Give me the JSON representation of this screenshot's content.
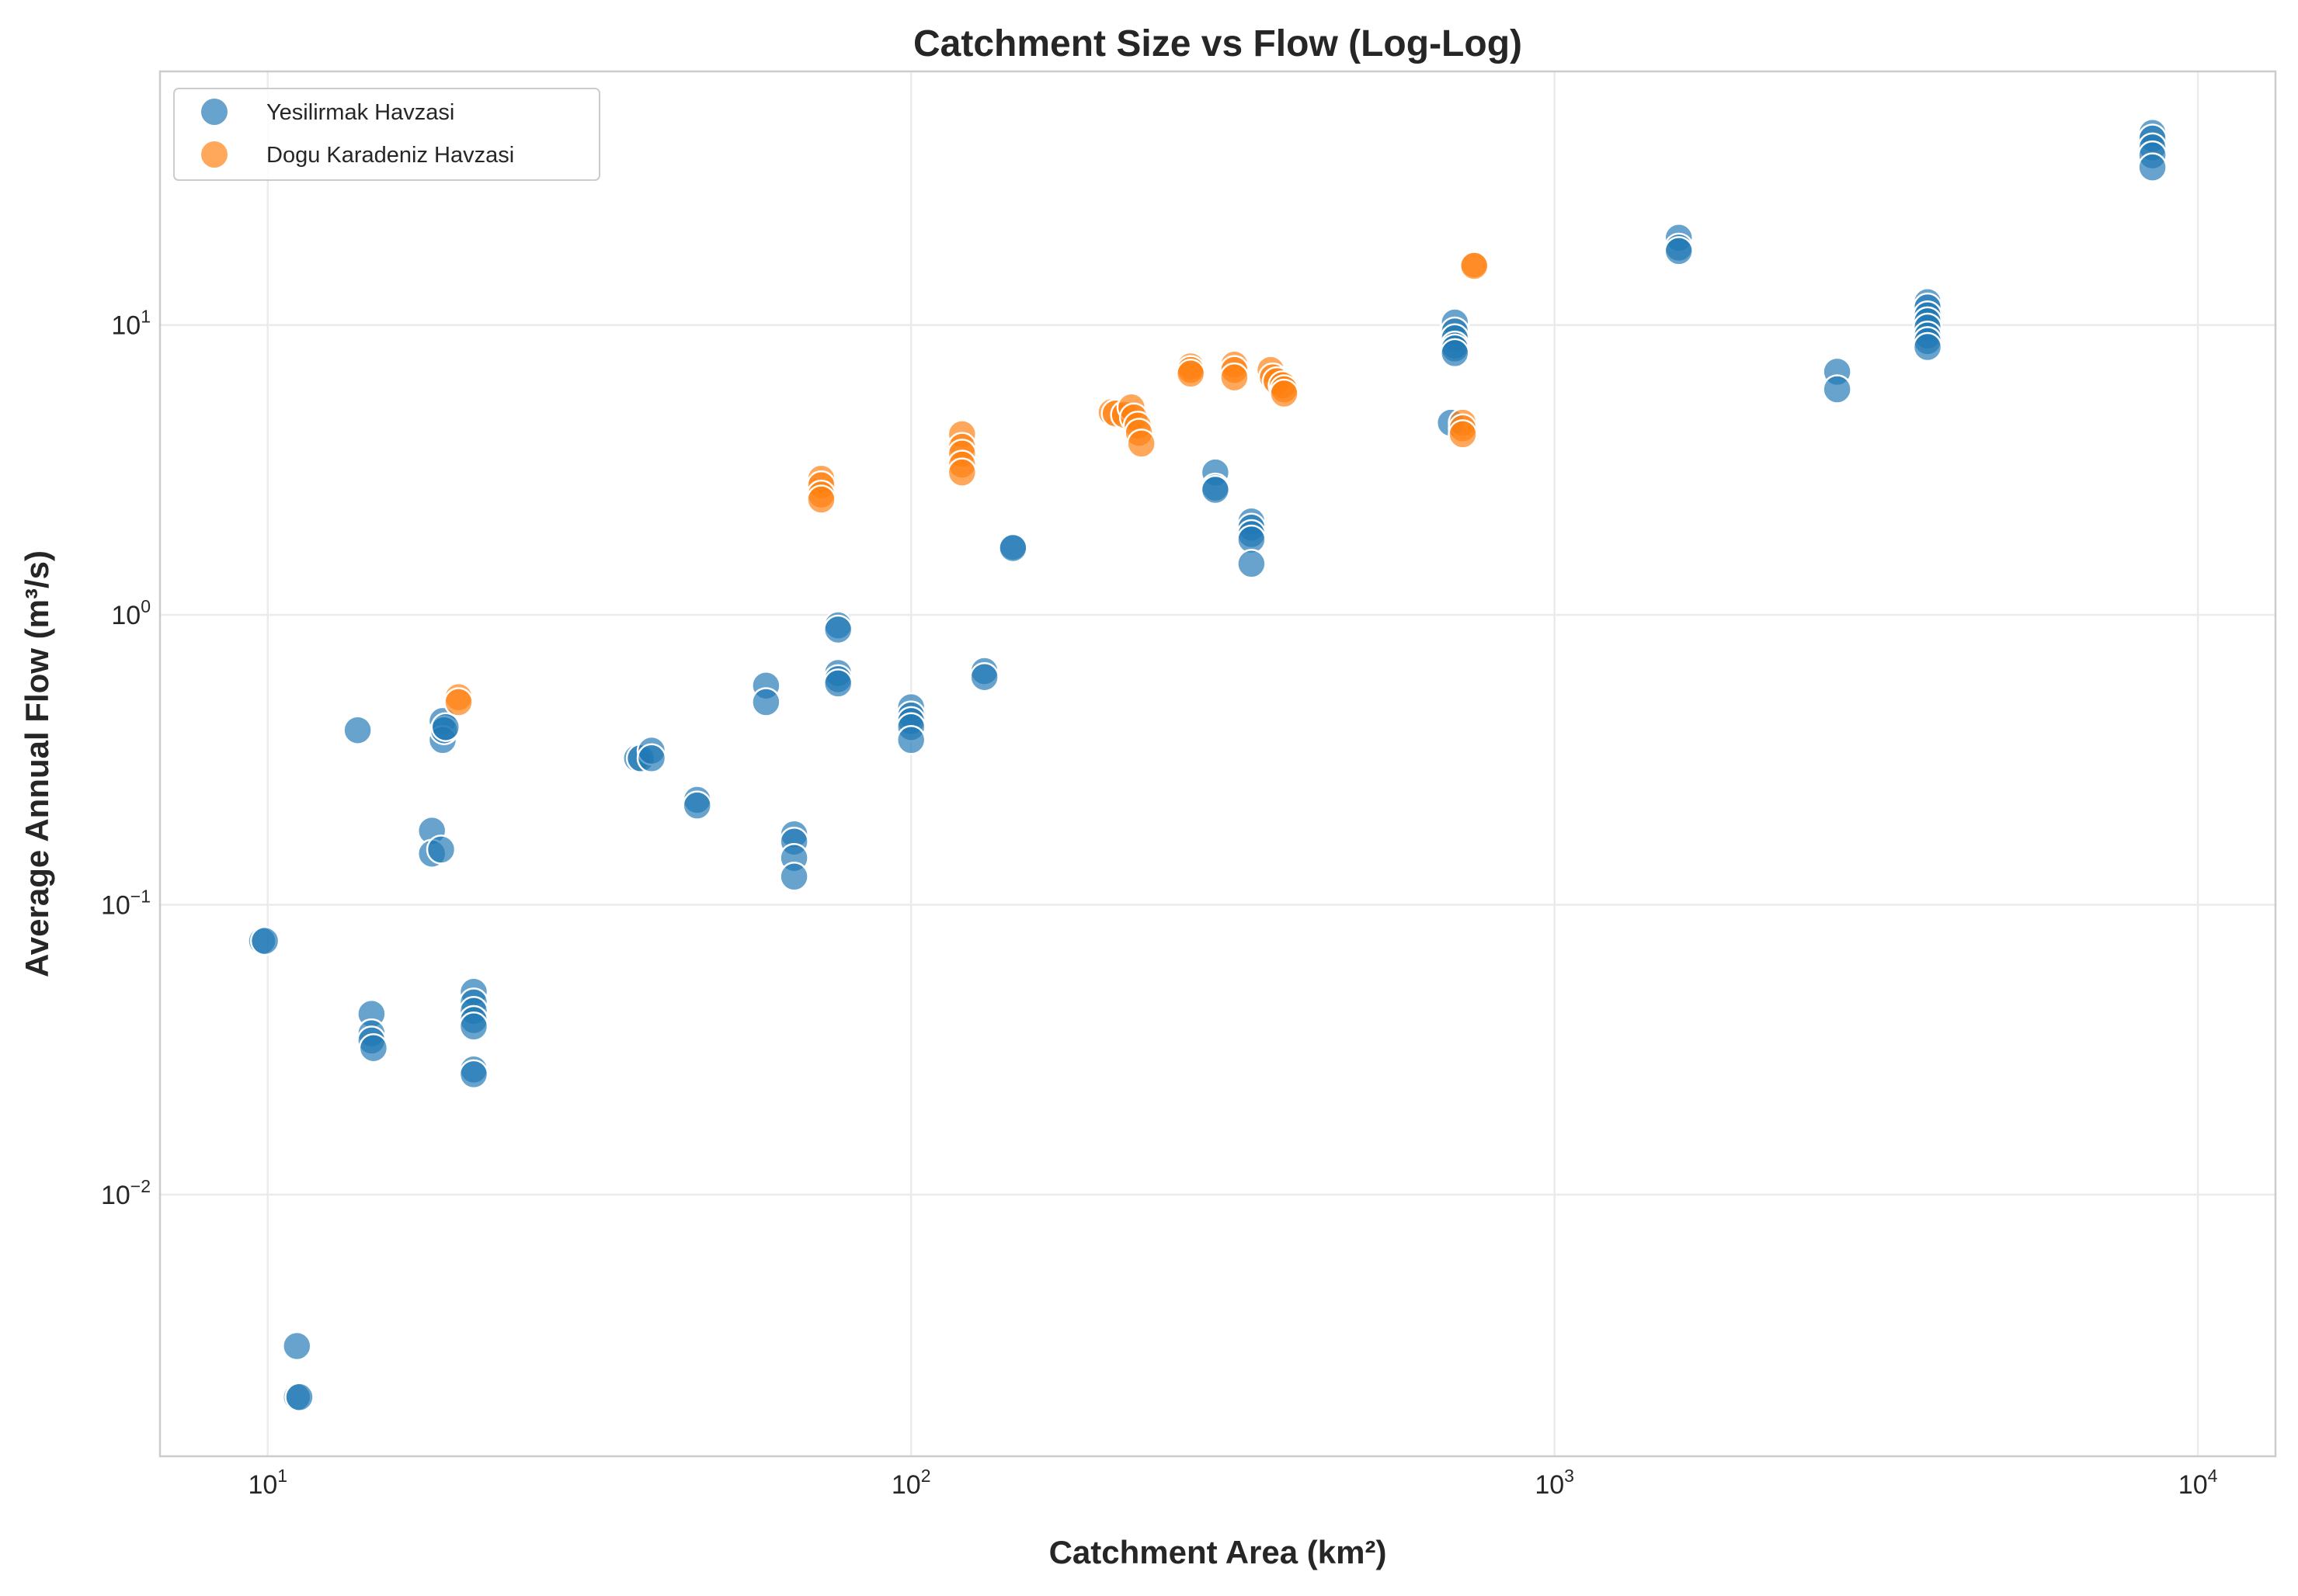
{
  "chart_data": {
    "type": "scatter",
    "title": "Catchment Size vs Flow (Log-Log)",
    "xlabel": "Catchment Area (km²)",
    "ylabel": "Average Annual Flow (m³/s)",
    "xscale": "log",
    "yscale": "log",
    "xlim": [
      6.8,
      13200
    ],
    "ylim": [
      0.00125,
      75
    ],
    "xticks": [
      {
        "base": "10",
        "exp": "1",
        "value": 10
      },
      {
        "base": "10",
        "exp": "2",
        "value": 100
      },
      {
        "base": "10",
        "exp": "3",
        "value": 1000
      },
      {
        "base": "10",
        "exp": "4",
        "value": 10000
      }
    ],
    "yticks": [
      {
        "base": "10",
        "exp": "−2",
        "value": 0.01
      },
      {
        "base": "10",
        "exp": "−1",
        "value": 0.1
      },
      {
        "base": "10",
        "exp": "0",
        "value": 1
      },
      {
        "base": "10",
        "exp": "1",
        "value": 10
      }
    ],
    "grid": true,
    "legend_position": "top-left",
    "series": [
      {
        "name": "Yesilirmak Havzasi",
        "color": "#1f77b4",
        "points": [
          [
            9.8,
            0.075
          ],
          [
            9.9,
            0.075
          ],
          [
            11.1,
            0.003
          ],
          [
            11.1,
            0.002
          ],
          [
            11.2,
            0.002
          ],
          [
            13.8,
            0.4
          ],
          [
            14.5,
            0.042
          ],
          [
            14.5,
            0.036
          ],
          [
            14.5,
            0.034
          ],
          [
            14.6,
            0.032
          ],
          [
            18.0,
            0.18
          ],
          [
            18.0,
            0.15
          ],
          [
            18.6,
            0.155
          ],
          [
            18.7,
            0.43
          ],
          [
            18.7,
            0.37
          ],
          [
            18.8,
            0.4
          ],
          [
            18.9,
            0.41
          ],
          [
            20.9,
            0.05
          ],
          [
            20.9,
            0.046
          ],
          [
            20.9,
            0.043
          ],
          [
            20.9,
            0.04
          ],
          [
            20.9,
            0.038
          ],
          [
            20.9,
            0.027
          ],
          [
            20.9,
            0.026
          ],
          [
            37.5,
            0.32
          ],
          [
            38.0,
            0.32
          ],
          [
            39.5,
            0.34
          ],
          [
            39.5,
            0.32
          ],
          [
            46.5,
            0.23
          ],
          [
            46.5,
            0.22
          ],
          [
            59.5,
            0.57
          ],
          [
            59.5,
            0.5
          ],
          [
            65.8,
            0.175
          ],
          [
            65.8,
            0.165
          ],
          [
            65.8,
            0.145
          ],
          [
            65.8,
            0.125
          ],
          [
            77.0,
            0.92
          ],
          [
            77.0,
            0.89
          ],
          [
            77.0,
            0.63
          ],
          [
            77.0,
            0.6
          ],
          [
            77.0,
            0.58
          ],
          [
            100.0,
            0.48
          ],
          [
            100.0,
            0.45
          ],
          [
            100.0,
            0.43
          ],
          [
            100.0,
            0.41
          ],
          [
            100.0,
            0.37
          ],
          [
            130.0,
            0.64
          ],
          [
            130.0,
            0.61
          ],
          [
            144.0,
            1.72
          ],
          [
            144.0,
            1.7
          ],
          [
            297.0,
            3.1
          ],
          [
            297.0,
            2.75
          ],
          [
            297.0,
            2.7
          ],
          [
            338.0,
            2.1
          ],
          [
            338.0,
            2.0
          ],
          [
            338.0,
            1.9
          ],
          [
            338.0,
            1.82
          ],
          [
            338.0,
            1.5
          ],
          [
            700.0,
            10.2
          ],
          [
            700.0,
            9.5
          ],
          [
            700.0,
            9.0
          ],
          [
            700.0,
            8.5
          ],
          [
            700.0,
            8.3
          ],
          [
            700.0,
            8.0
          ],
          [
            690.0,
            4.6
          ],
          [
            1560.0,
            20.0
          ],
          [
            1560.0,
            18.5
          ],
          [
            1560.0,
            18.0
          ],
          [
            2750.0,
            6.9
          ],
          [
            2750.0,
            6.0
          ],
          [
            3800.0,
            12.0
          ],
          [
            3800.0,
            11.5
          ],
          [
            3800.0,
            10.8
          ],
          [
            3800.0,
            10.3
          ],
          [
            3800.0,
            9.8
          ],
          [
            3800.0,
            9.2
          ],
          [
            3800.0,
            8.8
          ],
          [
            3800.0,
            8.4
          ],
          [
            8500.0,
            46.0
          ],
          [
            8500.0,
            44.0
          ],
          [
            8500.0,
            41.0
          ],
          [
            8500.0,
            38.5
          ],
          [
            8500.0,
            35.0
          ]
        ]
      },
      {
        "name": "Dogu Karadeniz Havzasi",
        "color": "#ff7f0e",
        "points": [
          [
            19.8,
            0.52
          ],
          [
            19.8,
            0.5
          ],
          [
            72.5,
            2.95
          ],
          [
            72.5,
            2.8
          ],
          [
            72.5,
            2.6
          ],
          [
            72.5,
            2.5
          ],
          [
            120.0,
            4.2
          ],
          [
            120.0,
            3.8
          ],
          [
            120.0,
            3.6
          ],
          [
            120.0,
            3.3
          ],
          [
            120.0,
            3.1
          ],
          [
            205.0,
            5.0
          ],
          [
            208.0,
            4.95
          ],
          [
            215.0,
            4.9
          ],
          [
            220.0,
            5.2
          ],
          [
            222.0,
            4.8
          ],
          [
            225.0,
            4.5
          ],
          [
            226.0,
            4.25
          ],
          [
            228.0,
            3.9
          ],
          [
            272.0,
            7.2
          ],
          [
            272.0,
            7.0
          ],
          [
            272.0,
            6.8
          ],
          [
            318.0,
            7.3
          ],
          [
            318.0,
            7.0
          ],
          [
            318.0,
            6.6
          ],
          [
            362.0,
            7.0
          ],
          [
            365.0,
            6.6
          ],
          [
            370.0,
            6.4
          ],
          [
            378.0,
            6.2
          ],
          [
            380.0,
            6.0
          ],
          [
            380.0,
            5.8
          ],
          [
            720.0,
            4.6
          ],
          [
            720.0,
            4.4
          ],
          [
            720.0,
            4.2
          ],
          [
            750.0,
            16.2
          ],
          [
            750.0,
            16.0
          ]
        ]
      }
    ]
  }
}
